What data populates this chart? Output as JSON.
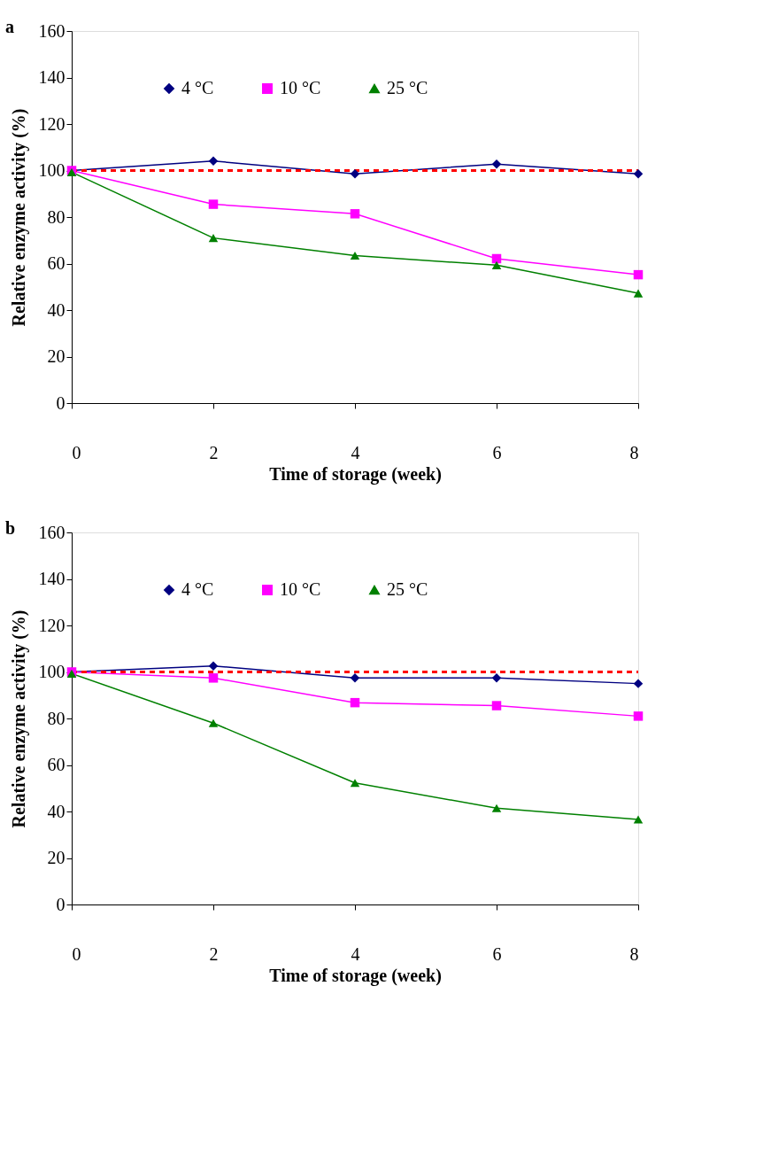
{
  "chart_data": [
    {
      "type": "line",
      "title": "a",
      "xlabel": "Time of storage (week)",
      "ylabel": "Relative enzyme activity (%)",
      "x": [
        0,
        2,
        4,
        6,
        8
      ],
      "xlim": [
        0,
        8
      ],
      "xticks": [
        0,
        2,
        4,
        6,
        8
      ],
      "ylim": [
        0,
        160
      ],
      "yticks": [
        0,
        20,
        40,
        60,
        80,
        100,
        120,
        140,
        160
      ],
      "grid": false,
      "legend": "top",
      "line_style": "solid",
      "series": [
        {
          "name": "4 °C",
          "color": "#000080",
          "marker": "diamond",
          "values": [
            100,
            104.1,
            98.6,
            102.8,
            98.6
          ]
        },
        {
          "name": "10 °C",
          "color": "#ff00ff",
          "marker": "square",
          "values": [
            100,
            85.5,
            81.4,
            62.1,
            55.2
          ]
        },
        {
          "name": "25 °C",
          "color": "#008000",
          "marker": "triangle",
          "values": [
            99.3,
            71.0,
            63.4,
            59.3,
            47.2
          ]
        }
      ],
      "ref_lines": [
        {
          "axis": "y",
          "value": 100,
          "color": "#ff0000",
          "line_style": "dashed"
        }
      ]
    },
    {
      "type": "line",
      "title": "b",
      "xlabel": "Time of storage (week)",
      "ylabel": "Relative enzyme activity (%)",
      "x": [
        0,
        2,
        4,
        6,
        8
      ],
      "xlim": [
        0,
        8
      ],
      "xticks": [
        0,
        2,
        4,
        6,
        8
      ],
      "ylim": [
        0,
        160
      ],
      "yticks": [
        0,
        20,
        40,
        60,
        80,
        100,
        120,
        140,
        160
      ],
      "grid": false,
      "legend": "top",
      "line_style": "solid",
      "series": [
        {
          "name": "4 °C",
          "color": "#000080",
          "marker": "diamond",
          "values": [
            100,
            102.6,
            97.4,
            97.4,
            95.0
          ]
        },
        {
          "name": "10 °C",
          "color": "#ff00ff",
          "marker": "square",
          "values": [
            100,
            97.4,
            86.8,
            85.5,
            81.0
          ]
        },
        {
          "name": "25 °C",
          "color": "#008000",
          "marker": "triangle",
          "values": [
            99.3,
            78.0,
            52.3,
            41.4,
            36.6
          ]
        }
      ],
      "ref_lines": [
        {
          "axis": "y",
          "value": 100,
          "color": "#ff0000",
          "line_style": "dashed"
        }
      ]
    }
  ]
}
